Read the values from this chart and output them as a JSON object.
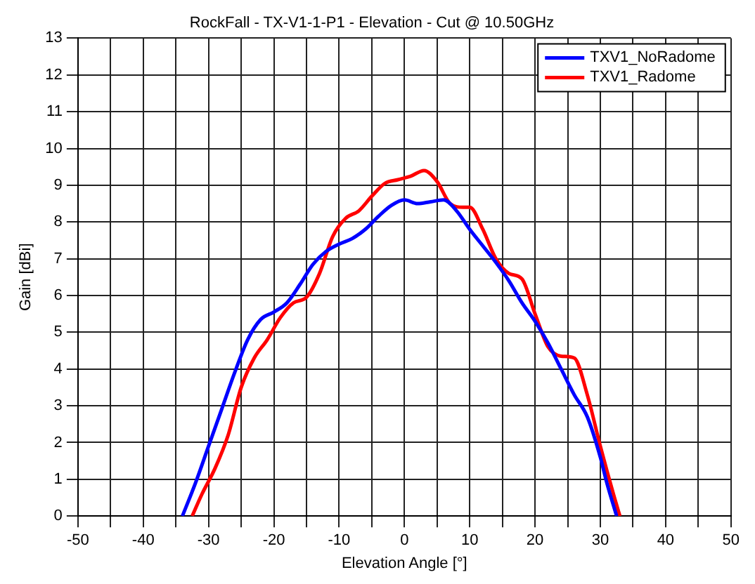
{
  "chart_data": {
    "type": "line",
    "title": "RockFall - TX-V1-1-P1 - Elevation - Cut @ 10.50GHz",
    "xlabel": "Elevation Angle [°]",
    "ylabel": "Gain [dBi]",
    "xlim": [
      -50,
      50
    ],
    "xticks": [
      -50,
      {
        "value": -45,
        "label": null
      },
      -40,
      {
        "value": -35,
        "label": null
      },
      -30,
      {
        "value": -25,
        "label": null
      },
      -20,
      {
        "value": -15,
        "label": null
      },
      -10,
      {
        "value": -5,
        "label": null
      },
      0,
      {
        "value": 5,
        "label": null
      },
      10,
      {
        "value": 15,
        "label": null
      },
      20,
      {
        "value": 25,
        "label": null
      },
      30,
      {
        "value": 35,
        "label": null
      },
      40,
      {
        "value": 45,
        "label": null
      },
      50
    ],
    "ylim": [
      0,
      13
    ],
    "yticks": [
      0,
      1,
      2,
      3,
      4,
      5,
      6,
      7,
      8,
      9,
      10,
      11,
      12,
      13
    ],
    "grid": true,
    "legend": "top right",
    "marker": "none",
    "line_style": "solid",
    "series": [
      {
        "name": "TXV1_NoRadome",
        "color": "#0000ff",
        "x": [
          -34,
          -32,
          -30,
          -28,
          -26,
          -24,
          -22,
          -20,
          -18,
          -16,
          -14,
          -12,
          -10,
          -8,
          -6,
          -4,
          -2,
          0,
          2,
          4,
          6,
          8,
          10,
          12,
          14,
          16,
          18,
          20,
          22,
          24,
          26,
          28,
          30,
          31,
          32.5
        ],
        "values": [
          0,
          0.9,
          1.9,
          2.9,
          3.9,
          4.8,
          5.35,
          5.55,
          5.8,
          6.3,
          6.85,
          7.2,
          7.4,
          7.55,
          7.8,
          8.15,
          8.45,
          8.6,
          8.5,
          8.55,
          8.6,
          8.3,
          7.8,
          7.35,
          6.9,
          6.4,
          5.8,
          5.3,
          4.7,
          4.0,
          3.3,
          2.7,
          1.6,
          0.9,
          0
        ]
      },
      {
        "name": "TXV1_Radome",
        "color": "#ff0000",
        "x": [
          -32.5,
          -31,
          -29,
          -27,
          -25,
          -23,
          -21,
          -19,
          -17,
          -15,
          -13,
          -11,
          -9,
          -7,
          -5,
          -3,
          -1,
          1,
          3,
          5,
          7,
          9,
          10,
          12,
          14,
          16,
          18,
          20,
          22,
          24,
          26,
          28,
          30,
          32,
          33
        ],
        "values": [
          0,
          0.6,
          1.3,
          2.2,
          3.5,
          4.3,
          4.8,
          5.4,
          5.8,
          5.95,
          6.6,
          7.6,
          8.1,
          8.3,
          8.7,
          9.05,
          9.15,
          9.25,
          9.4,
          9.1,
          8.5,
          8.4,
          8.4,
          7.8,
          7.0,
          6.6,
          6.45,
          5.5,
          4.6,
          4.35,
          4.3,
          3.3,
          1.9,
          0.6,
          0
        ]
      }
    ]
  }
}
